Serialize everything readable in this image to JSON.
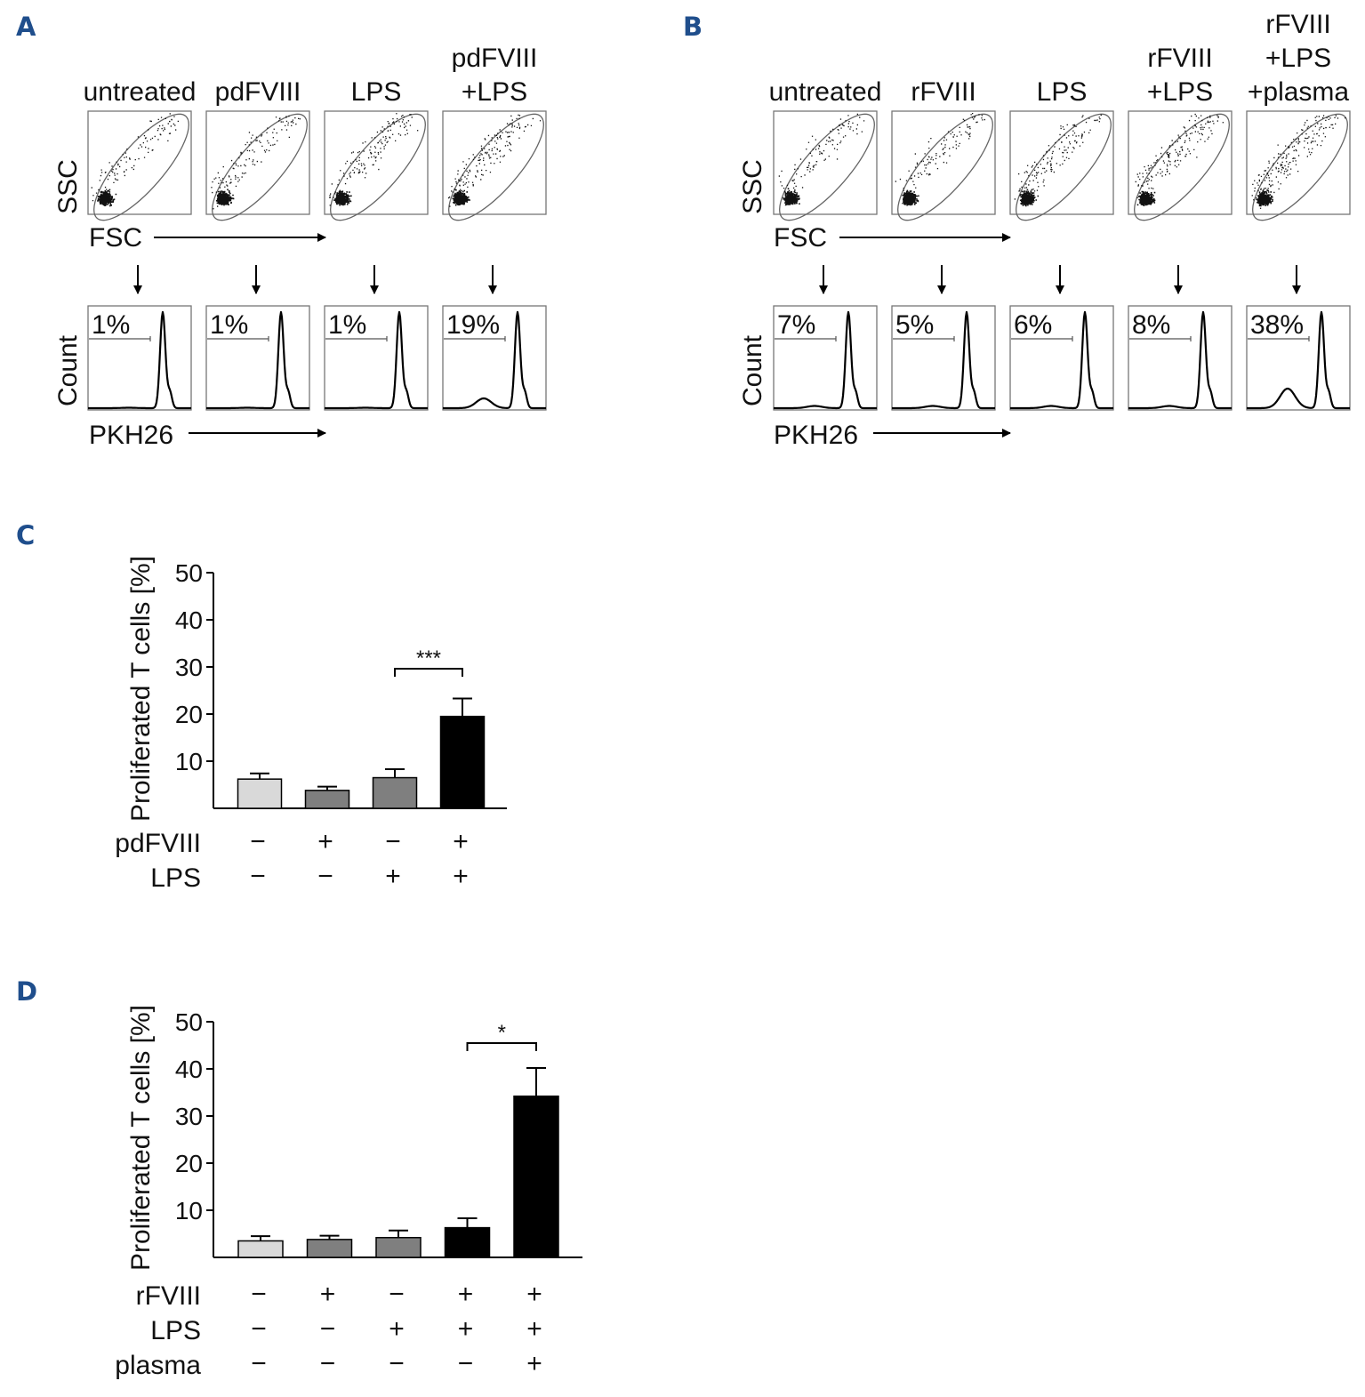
{
  "figure_labels": {
    "a": "A",
    "b": "B",
    "c": "C",
    "d": "D"
  },
  "flow_axes": {
    "ssc": "SSC",
    "fsc": "FSC",
    "count": "Count",
    "pkh": "PKH26"
  },
  "panel_a": {
    "conditions": [
      {
        "title": [
          "untreated"
        ],
        "percent": "1%"
      },
      {
        "title": [
          "pdFVIII"
        ],
        "percent": "1%"
      },
      {
        "title": [
          "LPS"
        ],
        "percent": "1%"
      },
      {
        "title": [
          "pdFVIII",
          "+LPS"
        ],
        "percent": "19%"
      }
    ]
  },
  "panel_b": {
    "conditions": [
      {
        "title": [
          "untreated"
        ],
        "percent": "7%"
      },
      {
        "title": [
          "rFVIII"
        ],
        "percent": "5%"
      },
      {
        "title": [
          "LPS"
        ],
        "percent": "6%"
      },
      {
        "title": [
          "rFVIII",
          "+LPS"
        ],
        "percent": "8%"
      },
      {
        "title": [
          "rFVIII",
          "+LPS",
          "+plasma"
        ],
        "percent": "38%"
      }
    ]
  },
  "chart_data": [
    {
      "type": "bar",
      "panel": "C",
      "ylabel": "Proliferated T cells [%]",
      "ylim": [
        0,
        50
      ],
      "yticks": [
        10,
        20,
        30,
        40,
        50
      ],
      "values": [
        6.2,
        3.8,
        6.5,
        19.5
      ],
      "errors": [
        1.2,
        0.8,
        1.8,
        3.8
      ],
      "colors": [
        "#d9d9d9",
        "#7f7f7f",
        "#7f7f7f",
        "#000000"
      ],
      "condition_rows": [
        {
          "label": "pdFVIII",
          "signs": [
            "−",
            "+",
            "−",
            "+"
          ]
        },
        {
          "label": "LPS",
          "signs": [
            "−",
            "−",
            "+",
            "+"
          ]
        }
      ],
      "significance": [
        {
          "from": 2,
          "to": 3,
          "label": "***"
        }
      ]
    },
    {
      "type": "bar",
      "panel": "D",
      "ylabel": "Proliferated T cells [%]",
      "ylim": [
        0,
        50
      ],
      "yticks": [
        10,
        20,
        30,
        40,
        50
      ],
      "values": [
        3.5,
        3.8,
        4.2,
        6.3,
        34.2
      ],
      "errors": [
        1.0,
        0.8,
        1.5,
        2.0,
        6.0
      ],
      "colors": [
        "#d9d9d9",
        "#7f7f7f",
        "#7f7f7f",
        "#000000",
        "#000000"
      ],
      "condition_rows": [
        {
          "label": "rFVIII",
          "signs": [
            "−",
            "+",
            "−",
            "+",
            "+"
          ]
        },
        {
          "label": "LPS",
          "signs": [
            "−",
            "−",
            "+",
            "+",
            "+"
          ]
        },
        {
          "label": "plasma",
          "signs": [
            "−",
            "−",
            "−",
            "−",
            "+"
          ]
        }
      ],
      "significance": [
        {
          "from": 3,
          "to": 4,
          "label": "*"
        }
      ]
    }
  ]
}
